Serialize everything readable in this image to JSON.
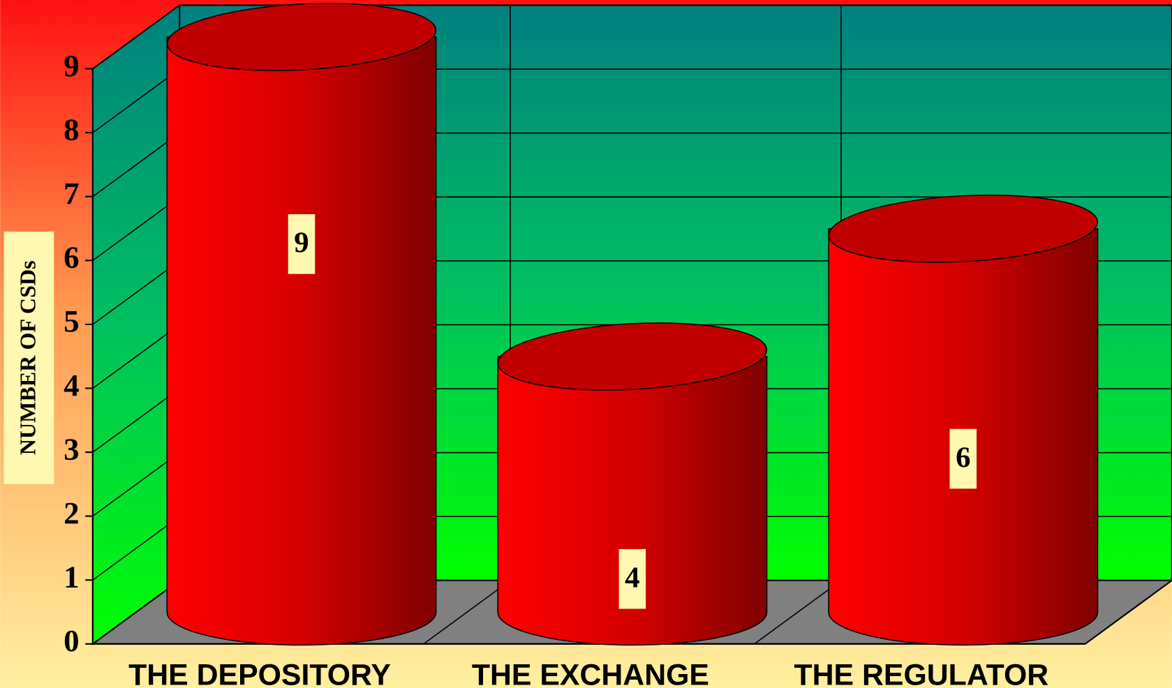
{
  "chart_data": {
    "type": "bar",
    "y_label": "NUMBER OF CSDs",
    "categories": [
      "THE DEPOSITORY",
      "THE EXCHANGE",
      "THE REGULATOR"
    ],
    "values": [
      9,
      4,
      6
    ],
    "color": "#ff0000",
    "ylim": [
      0,
      9
    ],
    "yticks": [
      0,
      1,
      2,
      3,
      4,
      5,
      6,
      7,
      8,
      9
    ],
    "grid": true,
    "three_d": true
  }
}
